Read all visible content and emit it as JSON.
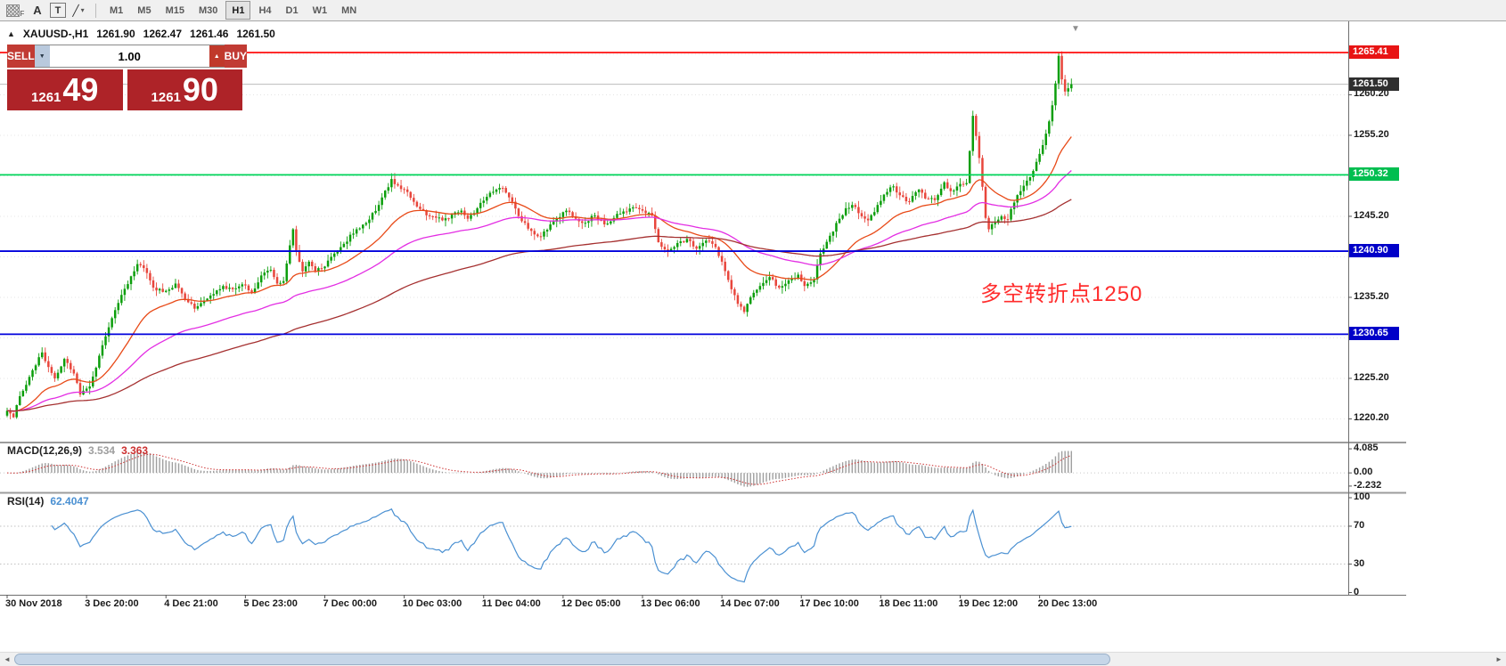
{
  "palette": {
    "up": "#0B9E0B",
    "down": "#E8463C",
    "ma_fast": "#E84A18",
    "ma_mid": "#E32EE3",
    "ma_slow": "#A53030",
    "macd_hist": "#9E9E9E",
    "macd_signal": "#CC3030",
    "rsi_line": "#4A90D2",
    "level_red": "#FF0E0E",
    "level_green": "#00D45A",
    "level_blue": "#0000DC",
    "bid_line": "#BDBDBD",
    "badge_red": "#E81414",
    "badge_green": "#00BE50",
    "badge_blue": "#0000C8",
    "badge_bid": "#2F2F2F",
    "panel_red": "#AE2328",
    "button_red": "#C13B34",
    "annotation": "#FF2D2D"
  },
  "icons": {
    "grid_sub": "F",
    "trendline": "╱",
    "dropdown": "▾",
    "one_click_toggle": "▲",
    "caret_up": "▲",
    "caret_down": "▼",
    "shift_marker": "▼",
    "scroll_left": "◄",
    "scroll_right": "►"
  },
  "toolbar": {
    "label_tool": "A",
    "text_tool": "T",
    "timeframes": [
      "M1",
      "M5",
      "M15",
      "M30",
      "H1",
      "H4",
      "D1",
      "W1",
      "MN"
    ],
    "active_timeframe": "H1"
  },
  "symbol_header": {
    "symbol": "XAUUSD-,H1",
    "open": "1261.90",
    "high": "1262.47",
    "low": "1261.46",
    "close": "1261.50"
  },
  "trade_panel": {
    "sell_label": "SELL",
    "buy_label": "BUY",
    "volume": "1.00",
    "sell_base": "1261",
    "sell_big": "49",
    "buy_base": "1261",
    "buy_big": "90"
  },
  "annotation": {
    "text": "多空转折点1250"
  },
  "price_axis": {
    "scale_labels": [
      {
        "price": 1260.2,
        "label": "1260.20"
      },
      {
        "price": 1255.2,
        "label": "1255.20"
      },
      {
        "price": 1245.2,
        "label": "1245.20"
      },
      {
        "price": 1235.2,
        "label": "1235.20"
      },
      {
        "price": 1225.2,
        "label": "1225.20"
      },
      {
        "price": 1220.2,
        "label": "1220.20"
      }
    ],
    "badges": [
      {
        "price": 1265.41,
        "label": "1265.41",
        "color_key": "badge_red"
      },
      {
        "price": 1261.5,
        "label": "1261.50",
        "color_key": "badge_bid"
      },
      {
        "price": 1250.32,
        "label": "1250.32",
        "color_key": "badge_green"
      },
      {
        "price": 1240.9,
        "label": "1240.90",
        "color_key": "badge_blue"
      },
      {
        "price": 1230.65,
        "label": "1230.65",
        "color_key": "badge_blue"
      }
    ]
  },
  "levels": [
    {
      "price": 1265.41,
      "color_key": "level_red"
    },
    {
      "price": 1250.32,
      "color_key": "level_green"
    },
    {
      "price": 1240.9,
      "color_key": "level_blue"
    },
    {
      "price": 1230.65,
      "color_key": "level_blue"
    }
  ],
  "bid_line": {
    "price": 1261.5
  },
  "time_axis": {
    "labels": [
      "30 Nov 2018",
      "3 Dec 20:00",
      "4 Dec 21:00",
      "5 Dec 23:00",
      "7 Dec 00:00",
      "10 Dec 03:00",
      "11 Dec 04:00",
      "12 Dec 05:00",
      "13 Dec 06:00",
      "14 Dec 07:00",
      "17 Dec 10:00",
      "18 Dec 11:00",
      "19 Dec 12:00",
      "20 Dec 13:00"
    ]
  },
  "macd_panel": {
    "title": "MACD(12,26,9)",
    "value_main": "3.534",
    "value_signal": "3.363",
    "axis_labels": [
      {
        "value": 4.085,
        "label": "4.085"
      },
      {
        "value": 0,
        "label": "0.00"
      },
      {
        "value": -2.232,
        "label": "-2.232"
      }
    ]
  },
  "rsi_panel": {
    "title": "RSI(14)",
    "value": "62.4047",
    "axis_labels": [
      {
        "value": 100,
        "label": "100"
      },
      {
        "value": 70,
        "label": "70"
      },
      {
        "value": 30,
        "label": "30"
      },
      {
        "value": 0,
        "label": "0"
      }
    ],
    "guides": [
      70,
      30
    ]
  },
  "chart_data": {
    "type": "candlestick",
    "symbol": "XAUUSD-",
    "timeframe": "H1",
    "current_bar_ohlc": {
      "open": 1261.9,
      "high": 1262.47,
      "low": 1261.46,
      "close": 1261.5
    },
    "sell_price": 1261.49,
    "buy_price": 1261.9,
    "y_range": [
      1218.1,
      1268.6
    ],
    "candle_count": 336,
    "x_labels": [
      "30 Nov 2018",
      "3 Dec 20:00",
      "4 Dec 21:00",
      "5 Dec 23:00",
      "7 Dec 00:00",
      "10 Dec 03:00",
      "11 Dec 04:00",
      "12 Dec 05:00",
      "13 Dec 06:00",
      "14 Dec 07:00",
      "17 Dec 10:00",
      "18 Dec 11:00",
      "19 Dec 12:00",
      "20 Dec 13:00"
    ],
    "horizontal_lines": [
      1265.41,
      1250.32,
      1240.9,
      1230.65
    ],
    "note": "close_anchors are [candleIndex, closePrice] control points read from the chart; intermediate hourly candles are interpolated between them",
    "close_anchors": [
      [
        0,
        1221.2
      ],
      [
        2,
        1220.4
      ],
      [
        4,
        1223.0
      ],
      [
        6,
        1224.4
      ],
      [
        8,
        1226.2
      ],
      [
        11,
        1228.4
      ],
      [
        13,
        1226.6
      ],
      [
        15,
        1225.2
      ],
      [
        18,
        1227.6
      ],
      [
        21,
        1225.8
      ],
      [
        23,
        1223.2
      ],
      [
        26,
        1224.2
      ],
      [
        29,
        1228.0
      ],
      [
        32,
        1231.5
      ],
      [
        36,
        1235.5
      ],
      [
        39,
        1237.8
      ],
      [
        41,
        1239.3
      ],
      [
        44,
        1238.2
      ],
      [
        46,
        1236.4
      ],
      [
        50,
        1236.0
      ],
      [
        53,
        1236.9
      ],
      [
        56,
        1235.0
      ],
      [
        59,
        1233.8
      ],
      [
        62,
        1234.8
      ],
      [
        65,
        1235.6
      ],
      [
        68,
        1236.6
      ],
      [
        71,
        1236.2
      ],
      [
        74,
        1236.8
      ],
      [
        77,
        1235.8
      ],
      [
        80,
        1237.9
      ],
      [
        83,
        1238.6
      ],
      [
        85,
        1236.9
      ],
      [
        87,
        1237.2
      ],
      [
        90,
        1243.6
      ],
      [
        91,
        1241.0
      ],
      [
        93,
        1238.4
      ],
      [
        95,
        1239.6
      ],
      [
        97,
        1238.4
      ],
      [
        100,
        1239.0
      ],
      [
        103,
        1240.6
      ],
      [
        106,
        1241.8
      ],
      [
        110,
        1243.6
      ],
      [
        114,
        1244.8
      ],
      [
        117,
        1246.6
      ],
      [
        121,
        1249.8
      ],
      [
        123,
        1249.0
      ],
      [
        126,
        1248.2
      ],
      [
        129,
        1246.4
      ],
      [
        133,
        1245.2
      ],
      [
        137,
        1244.7
      ],
      [
        140,
        1245.4
      ],
      [
        143,
        1245.9
      ],
      [
        145,
        1244.9
      ],
      [
        148,
        1246.2
      ],
      [
        151,
        1247.6
      ],
      [
        154,
        1248.5
      ],
      [
        156,
        1248.7
      ],
      [
        159,
        1247.0
      ],
      [
        162,
        1244.6
      ],
      [
        165,
        1243.4
      ],
      [
        168,
        1242.7
      ],
      [
        171,
        1244.2
      ],
      [
        174,
        1245.1
      ],
      [
        176,
        1245.9
      ],
      [
        179,
        1244.9
      ],
      [
        182,
        1244.4
      ],
      [
        185,
        1245.3
      ],
      [
        188,
        1244.2
      ],
      [
        191,
        1245.0
      ],
      [
        194,
        1245.8
      ],
      [
        197,
        1246.3
      ],
      [
        200,
        1245.9
      ],
      [
        203,
        1245.3
      ],
      [
        205,
        1242.0
      ],
      [
        208,
        1240.9
      ],
      [
        211,
        1241.9
      ],
      [
        214,
        1242.4
      ],
      [
        217,
        1241.2
      ],
      [
        220,
        1242.2
      ],
      [
        223,
        1241.4
      ],
      [
        225,
        1239.6
      ],
      [
        228,
        1236.2
      ],
      [
        230,
        1234.4
      ],
      [
        232,
        1233.4
      ],
      [
        234,
        1235.2
      ],
      [
        237,
        1236.6
      ],
      [
        240,
        1237.7
      ],
      [
        243,
        1236.4
      ],
      [
        246,
        1237.3
      ],
      [
        249,
        1238.0
      ],
      [
        251,
        1236.6
      ],
      [
        254,
        1237.4
      ],
      [
        256,
        1240.6
      ],
      [
        259,
        1242.8
      ],
      [
        262,
        1244.9
      ],
      [
        264,
        1246.2
      ],
      [
        266,
        1246.6
      ],
      [
        269,
        1245.2
      ],
      [
        271,
        1244.7
      ],
      [
        274,
        1246.6
      ],
      [
        277,
        1248.2
      ],
      [
        279,
        1248.9
      ],
      [
        281,
        1247.8
      ],
      [
        284,
        1247.0
      ],
      [
        287,
        1248.5
      ],
      [
        289,
        1247.4
      ],
      [
        292,
        1247.2
      ],
      [
        295,
        1249.4
      ],
      [
        297,
        1248.3
      ],
      [
        300,
        1249.2
      ],
      [
        302,
        1249.3
      ],
      [
        304,
        1257.6
      ],
      [
        306,
        1252.4
      ],
      [
        308,
        1245.0
      ],
      [
        309,
        1243.6
      ],
      [
        311,
        1244.4
      ],
      [
        313,
        1245.2
      ],
      [
        315,
        1244.8
      ],
      [
        317,
        1246.9
      ],
      [
        319,
        1248.3
      ],
      [
        321,
        1249.6
      ],
      [
        323,
        1250.8
      ],
      [
        325,
        1252.9
      ],
      [
        327,
        1255.4
      ],
      [
        329,
        1258.9
      ],
      [
        330,
        1261.6
      ],
      [
        331,
        1265.0
      ],
      [
        332,
        1262.1
      ],
      [
        333,
        1260.6
      ],
      [
        334,
        1261.0
      ],
      [
        335,
        1261.5
      ]
    ],
    "moving_averages": [
      {
        "period": 25,
        "method": "ema",
        "color_key": "ma_fast"
      },
      {
        "period": 60,
        "method": "ema",
        "color_key": "ma_mid"
      },
      {
        "period": 130,
        "method": "ema",
        "color_key": "ma_slow"
      }
    ],
    "indicators": {
      "macd": {
        "params": [
          12,
          26,
          9
        ],
        "last_main": 3.534,
        "last_signal": 3.363,
        "axis": [
          -2.232,
          0,
          4.085
        ]
      },
      "rsi": {
        "period": 14,
        "last": 62.4047,
        "axis": [
          0,
          30,
          70,
          100
        ]
      }
    }
  }
}
